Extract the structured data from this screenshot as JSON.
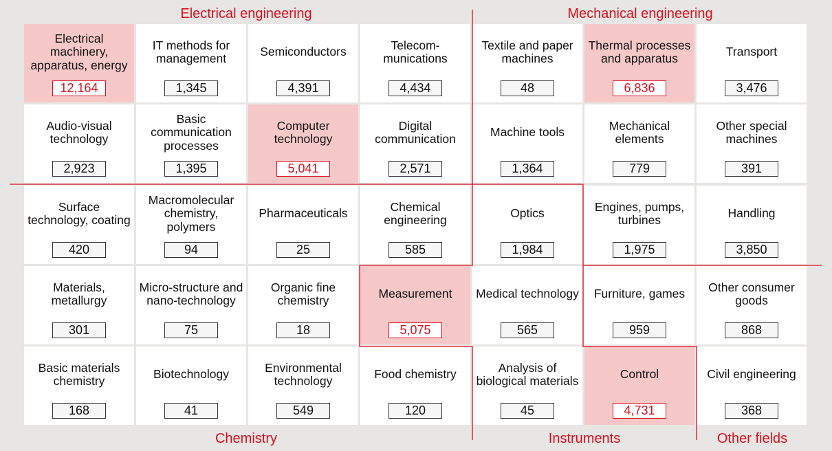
{
  "groups": {
    "electrical": "Electrical engineering",
    "mechanical": "Mechanical engineering",
    "chemistry": "Chemistry",
    "instruments": "Instruments",
    "other": "Other fields"
  },
  "colors": {
    "accent": "#d9101f",
    "highlight": "#f6c8c8",
    "background": "#e8e6e4"
  },
  "rows": [
    [
      {
        "label": "Electrical machinery, apparatus, energy",
        "value": "12,164",
        "hl": true
      },
      {
        "label": "IT methods for management",
        "value": "1,345"
      },
      {
        "label": "Semiconductors",
        "value": "4,391"
      },
      {
        "label": "Telecom-munications",
        "value": "4,434"
      },
      {
        "label": "Textile and paper machines",
        "value": "48"
      },
      {
        "label": "Thermal processes and apparatus",
        "value": "6,836",
        "hl": true
      },
      {
        "label": "Transport",
        "value": "3,476"
      }
    ],
    [
      {
        "label": "Audio-visual technology",
        "value": "2,923"
      },
      {
        "label": "Basic communication processes",
        "value": "1,395"
      },
      {
        "label": "Computer technology",
        "value": "5,041",
        "hl": true
      },
      {
        "label": "Digital communication",
        "value": "2,571"
      },
      {
        "label": "Machine tools",
        "value": "1,364"
      },
      {
        "label": "Mechanical elements",
        "value": "779"
      },
      {
        "label": "Other special machines",
        "value": "391"
      }
    ],
    [
      {
        "label": "Surface technology, coating",
        "value": "420"
      },
      {
        "label": "Macromolecular chemistry, polymers",
        "value": "94"
      },
      {
        "label": "Pharmaceuticals",
        "value": "25"
      },
      {
        "label": "Chemical engineering",
        "value": "585"
      },
      {
        "label": "Optics",
        "value": "1,984"
      },
      {
        "label": "Engines, pumps, turbines",
        "value": "1,975"
      },
      {
        "label": "Handling",
        "value": "3,850"
      }
    ],
    [
      {
        "label": "Materials, metallurgy",
        "value": "301"
      },
      {
        "label": "Micro-structure and nano-technology",
        "value": "75"
      },
      {
        "label": "Organic fine chemistry",
        "value": "18"
      },
      {
        "label": "Measurement",
        "value": "5,075",
        "hl": true
      },
      {
        "label": "Medical technology",
        "value": "565"
      },
      {
        "label": "Furniture, games",
        "value": "959"
      },
      {
        "label": "Other consumer goods",
        "value": "868"
      }
    ],
    [
      {
        "label": "Basic materials chemistry",
        "value": "168"
      },
      {
        "label": "Biotechnology",
        "value": "41"
      },
      {
        "label": "Environmental technology",
        "value": "549"
      },
      {
        "label": "Food chemistry",
        "value": "120"
      },
      {
        "label": "Analysis of biological materials",
        "value": "45"
      },
      {
        "label": "Control",
        "value": "4,731",
        "hl": true
      },
      {
        "label": "Civil engineering",
        "value": "368"
      }
    ]
  ]
}
